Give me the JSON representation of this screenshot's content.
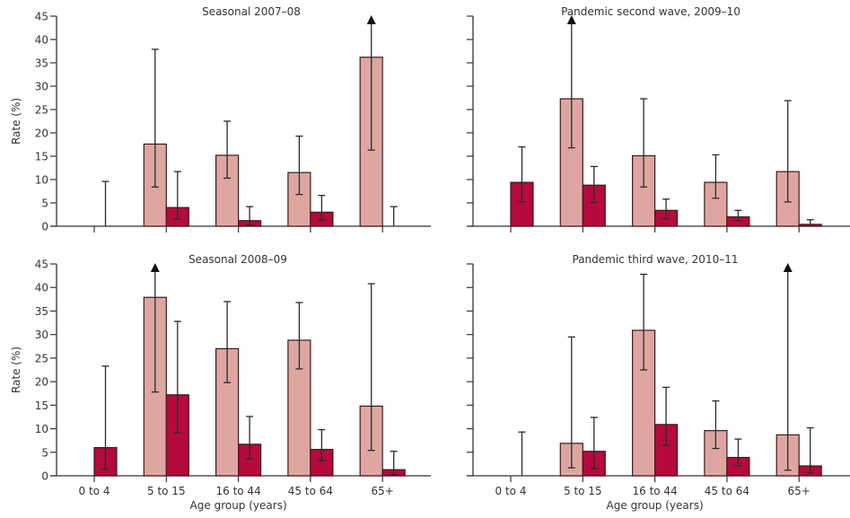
{
  "colors": {
    "series_a": "#dfa6a1",
    "series_b": "#b50a3b",
    "bar_outline": "#3a1a1a",
    "axis": "#333333",
    "errorbar": "#2a2a2a"
  },
  "chart_data": [
    {
      "type": "bar",
      "title": "Seasonal 2007–08",
      "xlabel": "",
      "ylabel": "Rate (%)",
      "ylim": [
        0,
        45
      ],
      "yticks": [
        0,
        5,
        10,
        15,
        20,
        25,
        30,
        35,
        40,
        45
      ],
      "categories": [
        "0 to 4",
        "5 to 15",
        "16 to 44",
        "45 to 64",
        "65+"
      ],
      "show_category_labels": false,
      "series": [
        {
          "name": "series A (light)",
          "values": [
            0,
            17.6,
            15.2,
            11.5,
            36.2
          ],
          "ci_low": [
            null,
            8.4,
            10.3,
            6.8,
            16.3
          ],
          "ci_high": [
            null,
            37.9,
            22.5,
            19.3,
            45
          ],
          "ci_high_truncated": [
            false,
            false,
            false,
            false,
            true
          ]
        },
        {
          "name": "series B (dark)",
          "values": [
            0,
            4.0,
            1.2,
            3.0,
            0
          ],
          "ci_low": [
            0,
            1.5,
            0.3,
            1.3,
            0
          ],
          "ci_high": [
            9.6,
            11.7,
            4.2,
            6.6,
            4.2
          ],
          "ci_high_truncated": [
            false,
            false,
            false,
            false,
            false
          ]
        }
      ]
    },
    {
      "type": "bar",
      "title": "Pandemic second wave, 2009–10",
      "xlabel": "",
      "ylabel": "",
      "ylim": [
        0,
        45
      ],
      "yticks": [
        0,
        5,
        10,
        15,
        20,
        25,
        30,
        35,
        40,
        45
      ],
      "categories": [
        "0 to 4",
        "5 to 15",
        "16 to 44",
        "45 to 64",
        "65+"
      ],
      "show_category_labels": false,
      "series": [
        {
          "name": "series A (light)",
          "values": [
            0,
            27.3,
            15.1,
            9.4,
            11.7
          ],
          "ci_low": [
            null,
            16.8,
            8.4,
            6.0,
            5.2
          ],
          "ci_high": [
            null,
            45,
            27.3,
            15.3,
            26.9
          ],
          "ci_high_truncated": [
            false,
            true,
            false,
            false,
            false
          ]
        },
        {
          "name": "series B (dark)",
          "values": [
            9.4,
            8.8,
            3.4,
            2.0,
            0.4
          ],
          "ci_low": [
            5.2,
            5.1,
            1.6,
            1.2,
            0
          ],
          "ci_high": [
            17.0,
            12.8,
            5.8,
            3.4,
            1.4
          ],
          "ci_high_truncated": [
            false,
            false,
            false,
            false,
            false
          ]
        }
      ]
    },
    {
      "type": "bar",
      "title": "Seasonal 2008–09",
      "xlabel": "Age group (years)",
      "ylabel": "Rate (%)",
      "ylim": [
        0,
        45
      ],
      "yticks": [
        0,
        5,
        10,
        15,
        20,
        25,
        30,
        35,
        40,
        45
      ],
      "categories": [
        "0 to 4",
        "5 to 15",
        "16 to 44",
        "45 to 64",
        "65+"
      ],
      "show_category_labels": true,
      "series": [
        {
          "name": "series A (light)",
          "values": [
            0,
            37.9,
            27.0,
            28.8,
            14.8
          ],
          "ci_low": [
            null,
            17.8,
            19.8,
            22.7,
            5.4
          ],
          "ci_high": [
            null,
            45,
            37.0,
            36.8,
            40.8
          ],
          "ci_high_truncated": [
            false,
            true,
            false,
            false,
            false
          ]
        },
        {
          "name": "series B (dark)",
          "values": [
            6.0,
            17.2,
            6.7,
            5.6,
            1.3
          ],
          "ci_low": [
            1.4,
            9.1,
            3.6,
            3.2,
            0.2
          ],
          "ci_high": [
            23.3,
            32.8,
            12.6,
            9.8,
            5.2
          ],
          "ci_high_truncated": [
            false,
            false,
            false,
            false,
            false
          ]
        }
      ]
    },
    {
      "type": "bar",
      "title": "Pandemic third wave, 2010–11",
      "xlabel": "Age group (years)",
      "ylabel": "",
      "ylim": [
        0,
        45
      ],
      "yticks": [
        0,
        5,
        10,
        15,
        20,
        25,
        30,
        35,
        40,
        45
      ],
      "categories": [
        "0 to 4",
        "5 to 15",
        "16 to 44",
        "45 to 64",
        "65+"
      ],
      "show_category_labels": true,
      "series": [
        {
          "name": "series A (light)",
          "values": [
            0,
            6.9,
            30.9,
            9.6,
            8.7
          ],
          "ci_low": [
            null,
            1.7,
            22.5,
            5.8,
            1.2
          ],
          "ci_high": [
            null,
            29.5,
            42.8,
            15.9,
            45
          ],
          "ci_high_truncated": [
            false,
            false,
            false,
            false,
            true
          ]
        },
        {
          "name": "series B (dark)",
          "values": [
            0,
            5.2,
            10.9,
            3.9,
            2.1
          ],
          "ci_low": [
            0,
            1.5,
            6.5,
            2.1,
            0.6
          ],
          "ci_high": [
            9.3,
            12.4,
            18.8,
            7.8,
            10.2
          ],
          "ci_high_truncated": [
            false,
            false,
            false,
            false,
            false
          ]
        }
      ]
    }
  ]
}
